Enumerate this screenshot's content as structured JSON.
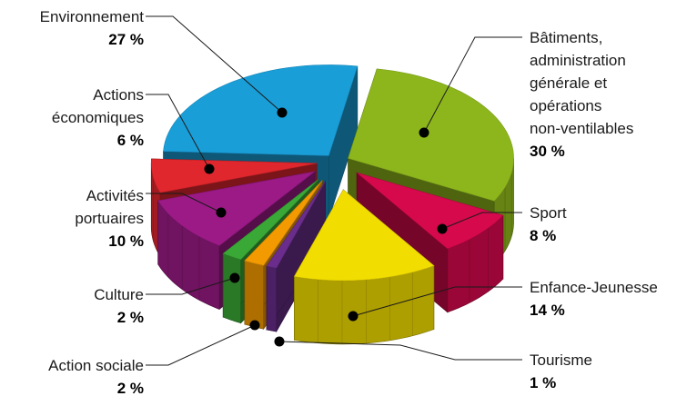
{
  "chart_data": {
    "type": "pie",
    "title": "",
    "slices": [
      {
        "label_lines": [
          "Bâtiments,",
          "administration",
          "générale et",
          "opérations",
          "non-ventilables"
        ],
        "value": 30,
        "value_label": "30 %",
        "color": "#8db61c"
      },
      {
        "label_lines": [
          "Sport"
        ],
        "value": 8,
        "value_label": "8 %",
        "color": "#d6094d"
      },
      {
        "label_lines": [
          "Enfance-Jeunesse"
        ],
        "value": 14,
        "value_label": "14 %",
        "color": "#f2dd00"
      },
      {
        "label_lines": [
          "Tourisme"
        ],
        "value": 1,
        "value_label": "1 %",
        "color": "#6a2d8c"
      },
      {
        "label_lines": [
          "Action sociale"
        ],
        "value": 2,
        "value_label": "2 %",
        "color": "#f29a00"
      },
      {
        "label_lines": [
          "Culture"
        ],
        "value": 2,
        "value_label": "2 %",
        "color": "#3aa836"
      },
      {
        "label_lines": [
          "Activités",
          "portuaires"
        ],
        "value": 10,
        "value_label": "10 %",
        "color": "#9b1a86"
      },
      {
        "label_lines": [
          "Actions",
          "économiques"
        ],
        "value": 6,
        "value_label": "6 %",
        "color": "#e0272d"
      },
      {
        "label_lines": [
          "Environnement"
        ],
        "value": 27,
        "value_label": "27 %",
        "color": "#1a9ed8"
      }
    ]
  }
}
